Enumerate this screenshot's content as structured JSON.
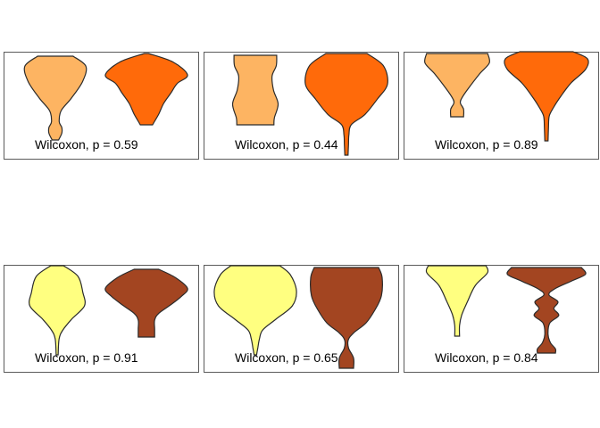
{
  "chart_data": [
    {
      "type": "violin",
      "fill_colors": [
        "#FDB462",
        "#FF6A0A"
      ],
      "groups": [
        {
          "profile": [
            [
              0,
              0.55
            ],
            [
              0.12,
              0.95
            ],
            [
              0.3,
              0.85
            ],
            [
              0.5,
              0.5
            ],
            [
              0.65,
              0.18
            ],
            [
              0.78,
              0.12
            ],
            [
              0.85,
              0.2
            ],
            [
              0.92,
              0.2
            ],
            [
              1,
              0.1
            ]
          ]
        },
        {
          "profile": [
            [
              0,
              0.05
            ],
            [
              0.12,
              0.65
            ],
            [
              0.3,
              1.0
            ],
            [
              0.42,
              0.75
            ],
            [
              0.55,
              0.6
            ],
            [
              0.7,
              0.42
            ],
            [
              0.85,
              0.3
            ],
            [
              0.95,
              0.2
            ],
            [
              1,
              0.15
            ]
          ]
        }
      ],
      "annotation": "Wilcoxon, p = 0.59"
    },
    {
      "type": "violin",
      "fill_colors": [
        "#FDB462",
        "#FF6A0A"
      ],
      "groups": [
        {
          "profile": [
            [
              0,
              0.92
            ],
            [
              0.15,
              0.9
            ],
            [
              0.3,
              0.72
            ],
            [
              0.5,
              0.78
            ],
            [
              0.7,
              0.98
            ],
            [
              0.9,
              0.82
            ],
            [
              1,
              0.8
            ]
          ]
        },
        {
          "profile": [
            [
              0,
              0.5
            ],
            [
              0.12,
              0.9
            ],
            [
              0.3,
              1.0
            ],
            [
              0.45,
              0.75
            ],
            [
              0.6,
              0.45
            ],
            [
              0.7,
              0.12
            ],
            [
              0.8,
              0.06
            ],
            [
              0.9,
              0.05
            ],
            [
              1,
              0.04
            ]
          ]
        }
      ],
      "annotation": "Wilcoxon, p = 0.44"
    },
    {
      "type": "violin",
      "fill_colors": [
        "#FDB462",
        "#FF6A0A"
      ],
      "groups": [
        {
          "profile": [
            [
              0,
              0.95
            ],
            [
              0.15,
              1.0
            ],
            [
              0.32,
              0.7
            ],
            [
              0.55,
              0.35
            ],
            [
              0.7,
              0.15
            ],
            [
              0.78,
              0.1
            ],
            [
              0.88,
              0.2
            ],
            [
              1,
              0.2
            ]
          ]
        },
        {
          "profile": [
            [
              0,
              0.65
            ],
            [
              0.08,
              1.0
            ],
            [
              0.2,
              0.95
            ],
            [
              0.35,
              0.6
            ],
            [
              0.5,
              0.35
            ],
            [
              0.62,
              0.18
            ],
            [
              0.72,
              0.07
            ],
            [
              0.85,
              0.05
            ],
            [
              1,
              0.04
            ]
          ]
        }
      ],
      "annotation": "Wilcoxon, p = 0.89"
    },
    {
      "type": "violin",
      "fill_colors": [
        "#FFFF80",
        "#A34521"
      ],
      "groups": [
        {
          "profile": [
            [
              0,
              0.2
            ],
            [
              0.12,
              0.65
            ],
            [
              0.3,
              0.8
            ],
            [
              0.45,
              0.85
            ],
            [
              0.6,
              0.45
            ],
            [
              0.72,
              0.18
            ],
            [
              0.82,
              0.06
            ],
            [
              1,
              0.03
            ]
          ]
        },
        {
          "profile": [
            [
              0,
              0.3
            ],
            [
              0.12,
              0.7
            ],
            [
              0.28,
              1.0
            ],
            [
              0.4,
              0.85
            ],
            [
              0.52,
              0.6
            ],
            [
              0.65,
              0.3
            ],
            [
              0.75,
              0.2
            ],
            [
              0.88,
              0.2
            ],
            [
              1,
              0.2
            ]
          ]
        }
      ],
      "annotation": "Wilcoxon, p = 0.91"
    },
    {
      "type": "violin",
      "fill_colors": [
        "#FFFF80",
        "#A34521"
      ],
      "groups": [
        {
          "profile": [
            [
              0,
              0.6
            ],
            [
              0.1,
              0.85
            ],
            [
              0.28,
              1.0
            ],
            [
              0.45,
              0.9
            ],
            [
              0.6,
              0.5
            ],
            [
              0.72,
              0.18
            ],
            [
              0.82,
              0.1
            ],
            [
              0.92,
              0.06
            ],
            [
              1,
              0.03
            ]
          ]
        },
        {
          "profile": [
            [
              0,
              0.9
            ],
            [
              0.1,
              1.0
            ],
            [
              0.28,
              0.98
            ],
            [
              0.42,
              0.8
            ],
            [
              0.55,
              0.55
            ],
            [
              0.65,
              0.2
            ],
            [
              0.72,
              0.05
            ],
            [
              0.8,
              0.06
            ],
            [
              0.9,
              0.2
            ],
            [
              1,
              0.2
            ]
          ]
        }
      ],
      "annotation": "Wilcoxon, p = 0.65"
    },
    {
      "type": "violin",
      "fill_colors": [
        "#FFFF80",
        "#A34521"
      ],
      "groups": [
        {
          "profile": [
            [
              0,
              0.95
            ],
            [
              0.1,
              1.0
            ],
            [
              0.28,
              0.6
            ],
            [
              0.5,
              0.35
            ],
            [
              0.7,
              0.15
            ],
            [
              0.85,
              0.08
            ],
            [
              1,
              0.08
            ]
          ]
        },
        {
          "profile": [
            [
              0,
              0.85
            ],
            [
              0.08,
              0.95
            ],
            [
              0.16,
              0.6
            ],
            [
              0.25,
              0.2
            ],
            [
              0.32,
              0.06
            ],
            [
              0.4,
              0.28
            ],
            [
              0.48,
              0.18
            ],
            [
              0.56,
              0.3
            ],
            [
              0.65,
              0.08
            ],
            [
              0.78,
              0.04
            ],
            [
              0.88,
              0.1
            ],
            [
              0.95,
              0.22
            ],
            [
              1,
              0.22
            ]
          ]
        }
      ],
      "annotation": "Wilcoxon, p = 0.84"
    }
  ]
}
